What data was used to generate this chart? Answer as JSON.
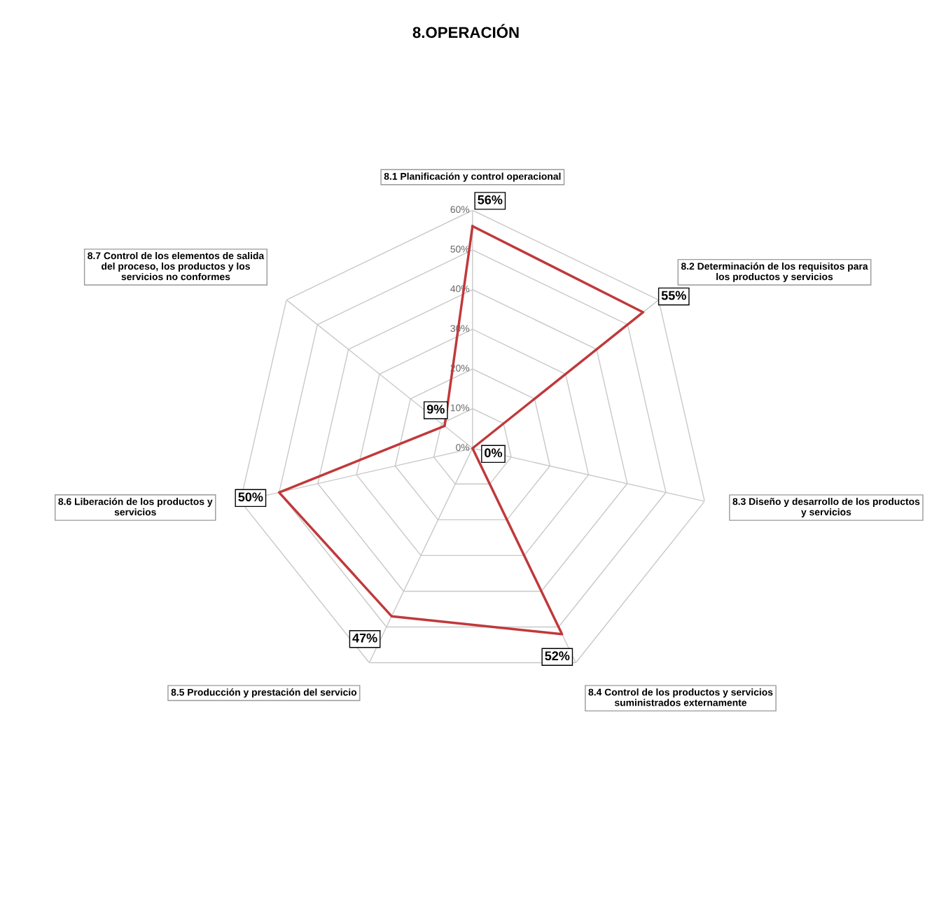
{
  "chart_data": {
    "type": "radar",
    "title": "8.OPERACIÓN",
    "categories": [
      "8.1 Planificación y control operacional",
      "8.2 Determinación de los requisitos para\nlos productos y servicios",
      "8.3 Diseño y desarrollo de los productos\ny servicios",
      "8.4 Control de los productos y servicios\nsuministrados externamente",
      "8.5 Producción y prestación del servicio",
      "8.6 Liberación de los productos y\nservicios",
      "8.7 Control de los elementos de salida\ndel proceso, los productos y los\nservicios no conformes"
    ],
    "series": [
      {
        "color": "#c0393b",
        "values": [
          56,
          55,
          0,
          52,
          47,
          50,
          9
        ],
        "value_labels": [
          "56%",
          "55%",
          "0%",
          "52%",
          "47%",
          "50%",
          "9%"
        ]
      }
    ],
    "ylim": [
      0,
      60
    ],
    "yticks": [
      {
        "value": 0,
        "label": "0%"
      },
      {
        "value": 10,
        "label": "10%"
      },
      {
        "value": 20,
        "label": "20%"
      },
      {
        "value": 30,
        "label": "30%"
      },
      {
        "value": 40,
        "label": "40%"
      },
      {
        "value": 50,
        "label": "50%"
      },
      {
        "value": 60,
        "label": "60%"
      }
    ],
    "grid": true,
    "marker": "none",
    "line_style": "solid"
  }
}
